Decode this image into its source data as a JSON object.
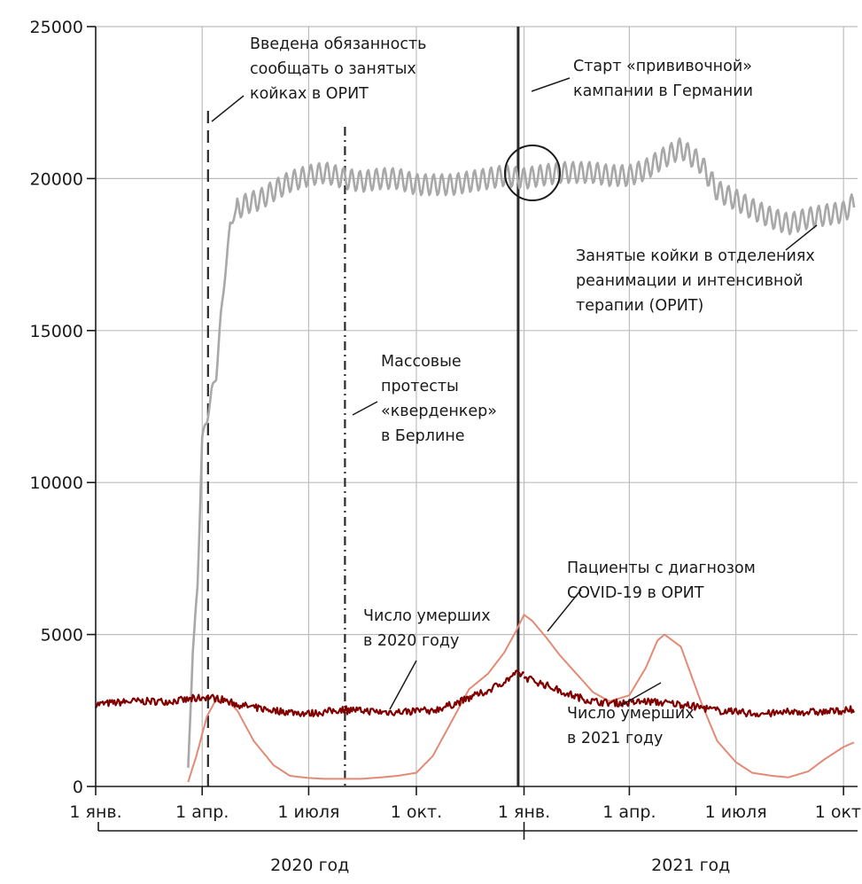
{
  "chart_data": {
    "type": "line",
    "title": "",
    "xlabel": "",
    "ylabel": "",
    "ylim": [
      0,
      25000
    ],
    "yticks": [
      0,
      5000,
      10000,
      15000,
      20000,
      25000
    ],
    "ytick_labels": [
      "0",
      "5000",
      "10000",
      "15000",
      "20000",
      "25000"
    ],
    "xtick_labels": [
      "1 янв.",
      "1 апр.",
      "1 июля",
      "1 окт.",
      "1 янв.",
      "1 апр.",
      "1 июля",
      "1 окт"
    ],
    "xtick_dates": [
      "2020-01-01",
      "2020-04-01",
      "2020-07-01",
      "2020-10-01",
      "2021-01-01",
      "2021-04-01",
      "2021-07-01",
      "2021-10-01"
    ],
    "xlim": [
      "2020-01-01",
      "2021-10-13"
    ],
    "grid": true,
    "year_labels": [
      "2020 год",
      "2021 год"
    ],
    "series": [
      {
        "name": "Занятые койки в отделениях реанимации и интенсивной терапии (ОРИТ)",
        "color": "#a8a8a8",
        "x": [
          "2020-03-20",
          "2020-03-24",
          "2020-03-28",
          "2020-04-01",
          "2020-04-05",
          "2020-04-09",
          "2020-04-13",
          "2020-04-17",
          "2020-04-21",
          "2020-04-25",
          "2020-05-01",
          "2020-05-10",
          "2020-05-20",
          "2020-06-01",
          "2020-06-15",
          "2020-07-01",
          "2020-07-15",
          "2020-08-01",
          "2020-08-15",
          "2020-09-01",
          "2020-09-15",
          "2020-10-01",
          "2020-10-15",
          "2020-11-01",
          "2020-11-15",
          "2020-12-01",
          "2020-12-15",
          "2021-01-01",
          "2021-01-15",
          "2021-02-01",
          "2021-02-15",
          "2021-03-01",
          "2021-03-15",
          "2021-04-01",
          "2021-04-15",
          "2021-05-01",
          "2021-05-15",
          "2021-06-01",
          "2021-06-15",
          "2021-07-01",
          "2021-07-15",
          "2021-08-01",
          "2021-08-15",
          "2021-09-01",
          "2021-09-15",
          "2021-10-01",
          "2021-10-10"
        ],
        "values": [
          500,
          4500,
          6500,
          11500,
          12000,
          13000,
          13500,
          15500,
          17000,
          18500,
          19000,
          19200,
          19300,
          19600,
          19900,
          20100,
          20200,
          20000,
          19900,
          20000,
          20000,
          19800,
          19800,
          19800,
          19900,
          20000,
          20100,
          20000,
          20100,
          20200,
          20200,
          20200,
          20100,
          20100,
          20300,
          20700,
          21000,
          20500,
          19600,
          19300,
          19000,
          18700,
          18500,
          18700,
          18800,
          18900,
          19200
        ],
        "weekly_oscillation": 700
      },
      {
        "name": "Пациенты с диагнозом COVID-19 в ОРИТ",
        "color": "#e38a77",
        "x": [
          "2020-03-20",
          "2020-03-27",
          "2020-04-05",
          "2020-04-12",
          "2020-04-20",
          "2020-05-01",
          "2020-05-15",
          "2020-06-01",
          "2020-06-15",
          "2020-07-01",
          "2020-07-15",
          "2020-08-01",
          "2020-08-15",
          "2020-09-01",
          "2020-09-15",
          "2020-10-01",
          "2020-10-15",
          "2020-11-01",
          "2020-11-15",
          "2020-12-01",
          "2020-12-15",
          "2020-12-25",
          "2021-01-01",
          "2021-01-08",
          "2021-01-20",
          "2021-02-01",
          "2021-02-15",
          "2021-03-01",
          "2021-03-15",
          "2021-04-01",
          "2021-04-15",
          "2021-04-25",
          "2021-05-01",
          "2021-05-15",
          "2021-06-01",
          "2021-06-15",
          "2021-07-01",
          "2021-07-15",
          "2021-08-01",
          "2021-08-15",
          "2021-09-01",
          "2021-09-15",
          "2021-10-01",
          "2021-10-10"
        ],
        "values": [
          150,
          1000,
          2300,
          2800,
          2900,
          2500,
          1500,
          700,
          350,
          280,
          250,
          250,
          250,
          300,
          350,
          450,
          1000,
          2200,
          3200,
          3700,
          4400,
          5100,
          5650,
          5450,
          4900,
          4300,
          3700,
          3100,
          2800,
          3000,
          3900,
          4800,
          5000,
          4600,
          2800,
          1500,
          800,
          450,
          350,
          300,
          500,
          900,
          1300,
          1450
        ]
      },
      {
        "name": "Число умерших в 2020 году",
        "color": "#800000",
        "x": [
          "2020-01-01",
          "2020-02-01",
          "2020-03-01",
          "2020-03-20",
          "2020-04-05",
          "2020-04-20",
          "2020-05-01",
          "2020-05-15",
          "2020-06-01",
          "2020-06-15",
          "2020-07-01",
          "2020-07-15",
          "2020-08-01",
          "2020-08-15",
          "2020-09-01",
          "2020-09-15",
          "2020-10-01",
          "2020-10-15",
          "2020-11-01",
          "2020-11-15",
          "2020-12-01",
          "2020-12-15",
          "2020-12-25",
          "2021-01-01"
        ],
        "values": [
          2700,
          2800,
          2800,
          2850,
          2950,
          2850,
          2700,
          2600,
          2500,
          2450,
          2400,
          2450,
          2550,
          2500,
          2450,
          2450,
          2500,
          2500,
          2700,
          2900,
          3150,
          3450,
          3700,
          3700
        ],
        "noise": 120
      },
      {
        "name": "Число умерших в 2021 году",
        "color": "#800000",
        "x": [
          "2021-01-01",
          "2021-01-15",
          "2021-02-01",
          "2021-02-15",
          "2021-03-01",
          "2021-03-15",
          "2021-04-01",
          "2021-04-15",
          "2021-05-01",
          "2021-05-15",
          "2021-06-01",
          "2021-06-15",
          "2021-07-01",
          "2021-07-15",
          "2021-08-01",
          "2021-08-15",
          "2021-09-01",
          "2021-09-15",
          "2021-10-01",
          "2021-10-10"
        ],
        "values": [
          3600,
          3400,
          3150,
          2950,
          2800,
          2750,
          2750,
          2800,
          2750,
          2700,
          2600,
          2500,
          2450,
          2400,
          2400,
          2450,
          2450,
          2450,
          2500,
          2500
        ],
        "noise": 120
      }
    ],
    "vertical_markers": [
      {
        "date": "2020-04-06",
        "style": "dashed",
        "label": "Введена обязанность сообщать о занятых койках в ОРИТ"
      },
      {
        "date": "2020-08-01",
        "style": "dash-dot",
        "label": "Массовые протесты «кверденкер» в Берлине"
      },
      {
        "date": "2020-12-27",
        "style": "solid",
        "label": "Старт «прививочной» кампании в Германии"
      }
    ],
    "annotations": {
      "report_duty": [
        "Введена обязанность",
        "сообщать о занятых",
        "койках в ОРИТ"
      ],
      "vaccine_start": [
        "Старт «прививочной»",
        "кампании в Германии"
      ],
      "protests": [
        "Массовые",
        "протесты",
        "«кверденкер»",
        "в Берлине"
      ],
      "icu_beds": [
        "Занятые койки в отделениях",
        "реанимации и интенсивной",
        "терапии (ОРИТ)"
      ],
      "covid_patients": [
        "Пациенты с диагнозом",
        "COVID-19 в ОРИТ"
      ],
      "deaths_2020": [
        "Число умерших",
        "в 2020 году"
      ],
      "deaths_2021": [
        "Число умерших",
        "в 2021 году"
      ]
    },
    "colors": {
      "icu_beds": "#a8a8a8",
      "covid_patients": "#e38a77",
      "deaths": "#800000",
      "grid": "#bdbdbd",
      "axis": "#1a1a1a"
    }
  }
}
